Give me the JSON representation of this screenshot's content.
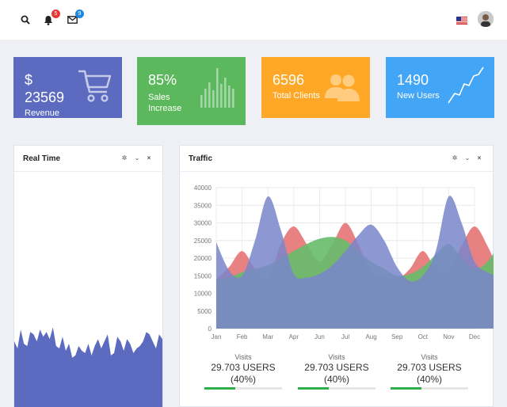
{
  "topbar": {
    "notifications_count": "5",
    "messages_count": "9",
    "icons": [
      "search-icon",
      "bell-icon",
      "envelope-icon",
      "us-flag-icon",
      "user-avatar"
    ]
  },
  "cards": [
    {
      "value_prefix": "$",
      "value": "23569",
      "label": "Revenue",
      "color": "#5c6bc0",
      "icon": "cart-icon"
    },
    {
      "value": "85%",
      "label_line1": "Sales",
      "label_line2": "Increase",
      "color": "#5cb85c",
      "icon": "bars-icon"
    },
    {
      "value": "6596",
      "label": "Total Clients",
      "color": "#ffa726",
      "icon": "users-icon"
    },
    {
      "value": "1490",
      "label": "New Users",
      "color": "#42a5f5",
      "icon": "trend-line-icon"
    }
  ],
  "panels": {
    "realtime": {
      "title": "Real Time",
      "controls": [
        "gear-icon",
        "chevron-down-icon",
        "close-icon"
      ]
    },
    "traffic": {
      "title": "Traffic",
      "controls": [
        "gear-icon",
        "chevron-down-icon",
        "close-icon"
      ]
    }
  },
  "stats": [
    {
      "label": "Visits",
      "value": "29.703 USERS",
      "percent": "(40%)",
      "progress": 0.4
    },
    {
      "label": "Visits",
      "value": "29.703 USERS",
      "percent": "(40%)",
      "progress": 0.4
    },
    {
      "label": "Visits",
      "value": "29.703 USERS",
      "percent": "(40%)",
      "progress": 0.4
    }
  ],
  "chart_data": [
    {
      "type": "area",
      "title": "",
      "colors": [
        "#5c6bc0"
      ],
      "series": [
        {
          "values": [
            0.28,
            0.25,
            0.33,
            0.27,
            0.26,
            0.32,
            0.31,
            0.28,
            0.33,
            0.3,
            0.32,
            0.29,
            0.34,
            0.26,
            0.25,
            0.3,
            0.24,
            0.27,
            0.21,
            0.22,
            0.26,
            0.24,
            0.23,
            0.27,
            0.22,
            0.26,
            0.29,
            0.25,
            0.28,
            0.31,
            0.22,
            0.23,
            0.3,
            0.28,
            0.24,
            0.29,
            0.27,
            0.23,
            0.25,
            0.26,
            0.28,
            0.32,
            0.31,
            0.28,
            0.25,
            0.31,
            0.29
          ]
        }
      ]
    },
    {
      "type": "area",
      "title": "",
      "categories": [
        "Jan",
        "Feb",
        "Mar",
        "Apr",
        "Jun",
        "Jul",
        "Aug",
        "Sep",
        "Oct",
        "Nov",
        "Dec"
      ],
      "yticks": [
        0,
        5000,
        10000,
        15000,
        20000,
        25000,
        30000,
        35000,
        40000
      ],
      "ylim": [
        0,
        40000
      ],
      "grid": true,
      "series": [
        {
          "color": "#e57373",
          "x": [
            0,
            0.5,
            1,
            1.5,
            2,
            2.5,
            3,
            3.5,
            4,
            4.5,
            5,
            5.5,
            6,
            6.5,
            7,
            7.5,
            8,
            8.5,
            9,
            9.5,
            10,
            10.5,
            11
          ],
          "values": [
            14000,
            17500,
            22000,
            17000,
            14000,
            24000,
            29000,
            24000,
            19000,
            24000,
            30000,
            24000,
            16000,
            15000,
            14000,
            17000,
            22000,
            17000,
            16500,
            23500,
            29000,
            23500,
            15000
          ]
        },
        {
          "color": "#66bb6a",
          "x": [
            0,
            0.5,
            1,
            1.5,
            2,
            2.5,
            3,
            3.5,
            4,
            4.5,
            5,
            5.5,
            6,
            6.5,
            7,
            7.5,
            8,
            8.5,
            9,
            9.5,
            10,
            10.5,
            11
          ],
          "values": [
            14000,
            14500,
            16000,
            17000,
            18000,
            20000,
            22000,
            24000,
            25500,
            26000,
            25000,
            22000,
            19000,
            17000,
            15000,
            15500,
            17500,
            21000,
            24000,
            20000,
            17000,
            19000,
            24500
          ]
        },
        {
          "color": "#7986cb",
          "x": [
            0,
            0.5,
            1,
            1.5,
            2,
            2.5,
            3,
            3.5,
            4,
            4.5,
            5,
            5.5,
            6,
            6.5,
            7,
            7.5,
            8,
            8.5,
            9,
            9.5,
            10,
            10.5,
            11
          ],
          "values": [
            24500,
            16500,
            15000,
            25000,
            37500,
            28000,
            15500,
            14500,
            15500,
            18000,
            22000,
            26500,
            29500,
            25000,
            17500,
            13500,
            15000,
            22000,
            37500,
            30000,
            19000,
            16000,
            14500
          ]
        }
      ]
    }
  ]
}
